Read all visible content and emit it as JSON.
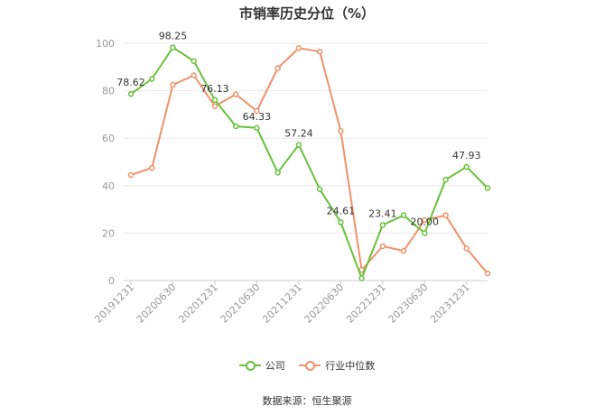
{
  "title": "市销率历史分位（%）",
  "source_text": "数据来源：恒生聚源",
  "colors": {
    "company": "#67c23a",
    "industry": "#f0916a",
    "grid": "#e8e8e8",
    "axis": "#999999"
  },
  "chart_data": {
    "type": "line",
    "title": "市销率历史分位（%）",
    "ylim": [
      0,
      100
    ],
    "yticks": [
      0,
      20,
      40,
      60,
      80,
      100
    ],
    "grid": true,
    "legend_position": "bottom",
    "x": [
      "20191231",
      "20200331",
      "20200630",
      "20200930",
      "20201231",
      "20210331",
      "20210630",
      "20210930",
      "20211231",
      "20220331",
      "20220630",
      "20220930",
      "20221231",
      "20230331",
      "20230630",
      "20230930",
      "20231231",
      "20240331"
    ],
    "xtick_labels": [
      "20191231",
      "20200630",
      "20201231",
      "20210630",
      "20211231",
      "20220630",
      "20221231",
      "20230630",
      "20231231"
    ],
    "xtick_indices": [
      0,
      2,
      4,
      6,
      8,
      10,
      12,
      14,
      16
    ],
    "series": [
      {
        "name": "公司",
        "values": [
          78.62,
          85,
          98.25,
          92.5,
          76.13,
          65,
          64.33,
          45.5,
          57.24,
          38.5,
          24.61,
          1,
          23.41,
          27.5,
          20.0,
          42.5,
          47.93,
          39
        ]
      },
      {
        "name": "行业中位数",
        "values": [
          44.5,
          47.5,
          82.5,
          86.5,
          73.5,
          78.5,
          71.5,
          89.5,
          98,
          96.5,
          63,
          4.5,
          14.5,
          12.5,
          25.5,
          27.5,
          13.5,
          3
        ]
      }
    ],
    "data_labels": [
      {
        "index": 0,
        "text": "78.62"
      },
      {
        "index": 2,
        "text": "98.25"
      },
      {
        "index": 4,
        "text": "76.13"
      },
      {
        "index": 6,
        "text": "64.33"
      },
      {
        "index": 8,
        "text": "57.24"
      },
      {
        "index": 10,
        "text": "24.61"
      },
      {
        "index": 12,
        "text": "23.41"
      },
      {
        "index": 14,
        "text": "20.00"
      },
      {
        "index": 16,
        "text": "47.93"
      }
    ]
  }
}
